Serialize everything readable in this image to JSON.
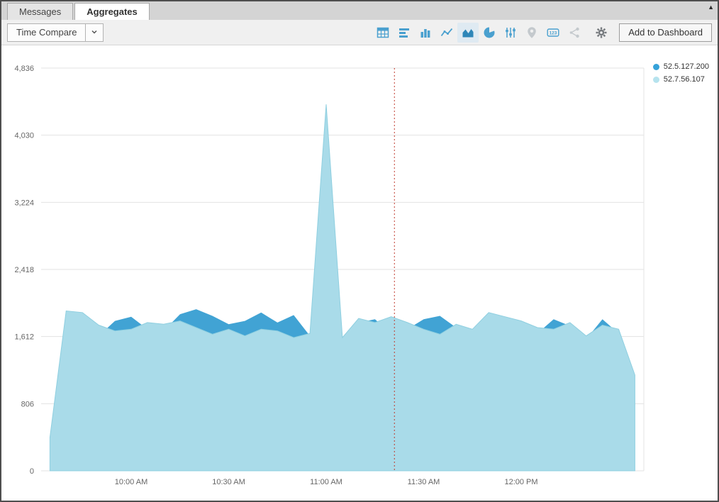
{
  "window": {
    "scroll_up_icon": "▲"
  },
  "tabs": {
    "messages": "Messages",
    "aggregates": "Aggregates"
  },
  "toolbar": {
    "time_compare": "Time Compare",
    "add_to_dashboard": "Add to Dashboard",
    "icon_color": "#4aa0cf",
    "icon_color_selected": "#2e86b8",
    "icon_color_disabled": "#c4c9cd",
    "icon_color_gear": "#75797d",
    "icons": [
      {
        "name": "table-icon",
        "state": "enabled"
      },
      {
        "name": "bar-chart-icon",
        "state": "enabled"
      },
      {
        "name": "column-chart-icon",
        "state": "enabled"
      },
      {
        "name": "line-chart-icon",
        "state": "enabled"
      },
      {
        "name": "area-chart-icon",
        "state": "selected"
      },
      {
        "name": "pie-chart-icon",
        "state": "enabled"
      },
      {
        "name": "sliders-icon",
        "state": "enabled"
      },
      {
        "name": "map-pin-icon",
        "state": "disabled"
      },
      {
        "name": "numeric-123-icon",
        "state": "enabled"
      },
      {
        "name": "node-link-icon",
        "state": "disabled"
      },
      {
        "name": "gear-icon",
        "state": "enabled"
      }
    ]
  },
  "legend": {
    "items": [
      {
        "label": "52.5.127.200",
        "color": "#36a2d9"
      },
      {
        "label": "52.7.56.107",
        "color": "#b6e3ee"
      }
    ]
  },
  "chart_data": {
    "type": "area",
    "title": "",
    "xlabel": "",
    "ylabel": "",
    "grid": true,
    "legend_position": "top-right",
    "ylim": [
      0,
      4836
    ],
    "y_tick_values": [
      4836,
      4030,
      3224,
      2418,
      1612,
      806,
      0
    ],
    "y_tick_labels": [
      "4,836",
      "4,030",
      "3,224",
      "2,418",
      "1,612",
      "806",
      "0"
    ],
    "x_tick_labels": [
      "10:00 AM",
      "10:30 AM",
      "11:00 AM",
      "11:30 AM",
      "12:00 PM"
    ],
    "x_tick_minutes": [
      25,
      55,
      85,
      115,
      145
    ],
    "x_minutes": [
      0,
      5,
      10,
      15,
      20,
      25,
      30,
      35,
      40,
      45,
      50,
      55,
      60,
      65,
      70,
      75,
      80,
      85,
      90,
      95,
      100,
      105,
      110,
      115,
      120,
      125,
      130,
      135,
      140,
      145,
      150,
      155,
      160,
      165,
      170,
      175,
      180
    ],
    "series": [
      {
        "name": "52.5.127.200",
        "color": "#41a3d4",
        "stroke": "#3397cb",
        "values": [
          380,
          1650,
          1700,
          1620,
          1800,
          1850,
          1700,
          1680,
          1880,
          1940,
          1860,
          1760,
          1800,
          1900,
          1780,
          1870,
          1620,
          4200,
          1560,
          1780,
          1820,
          1650,
          1700,
          1820,
          1860,
          1720,
          1680,
          1720,
          1820,
          1700,
          1650,
          1820,
          1740,
          1580,
          1820,
          1650,
          1100
        ]
      },
      {
        "name": "52.7.56.107",
        "color": "#a9dbe9",
        "stroke": "#8fcfe0",
        "values": [
          400,
          1920,
          1900,
          1750,
          1680,
          1700,
          1780,
          1760,
          1800,
          1720,
          1640,
          1700,
          1620,
          1700,
          1680,
          1600,
          1650,
          4400,
          1600,
          1830,
          1780,
          1850,
          1780,
          1700,
          1640,
          1760,
          1700,
          1900,
          1850,
          1800,
          1720,
          1700,
          1780,
          1620,
          1750,
          1700,
          1150
        ]
      }
    ],
    "cursor_line": {
      "x_minute": 106,
      "color": "#c0392b",
      "style": "dotted"
    }
  }
}
